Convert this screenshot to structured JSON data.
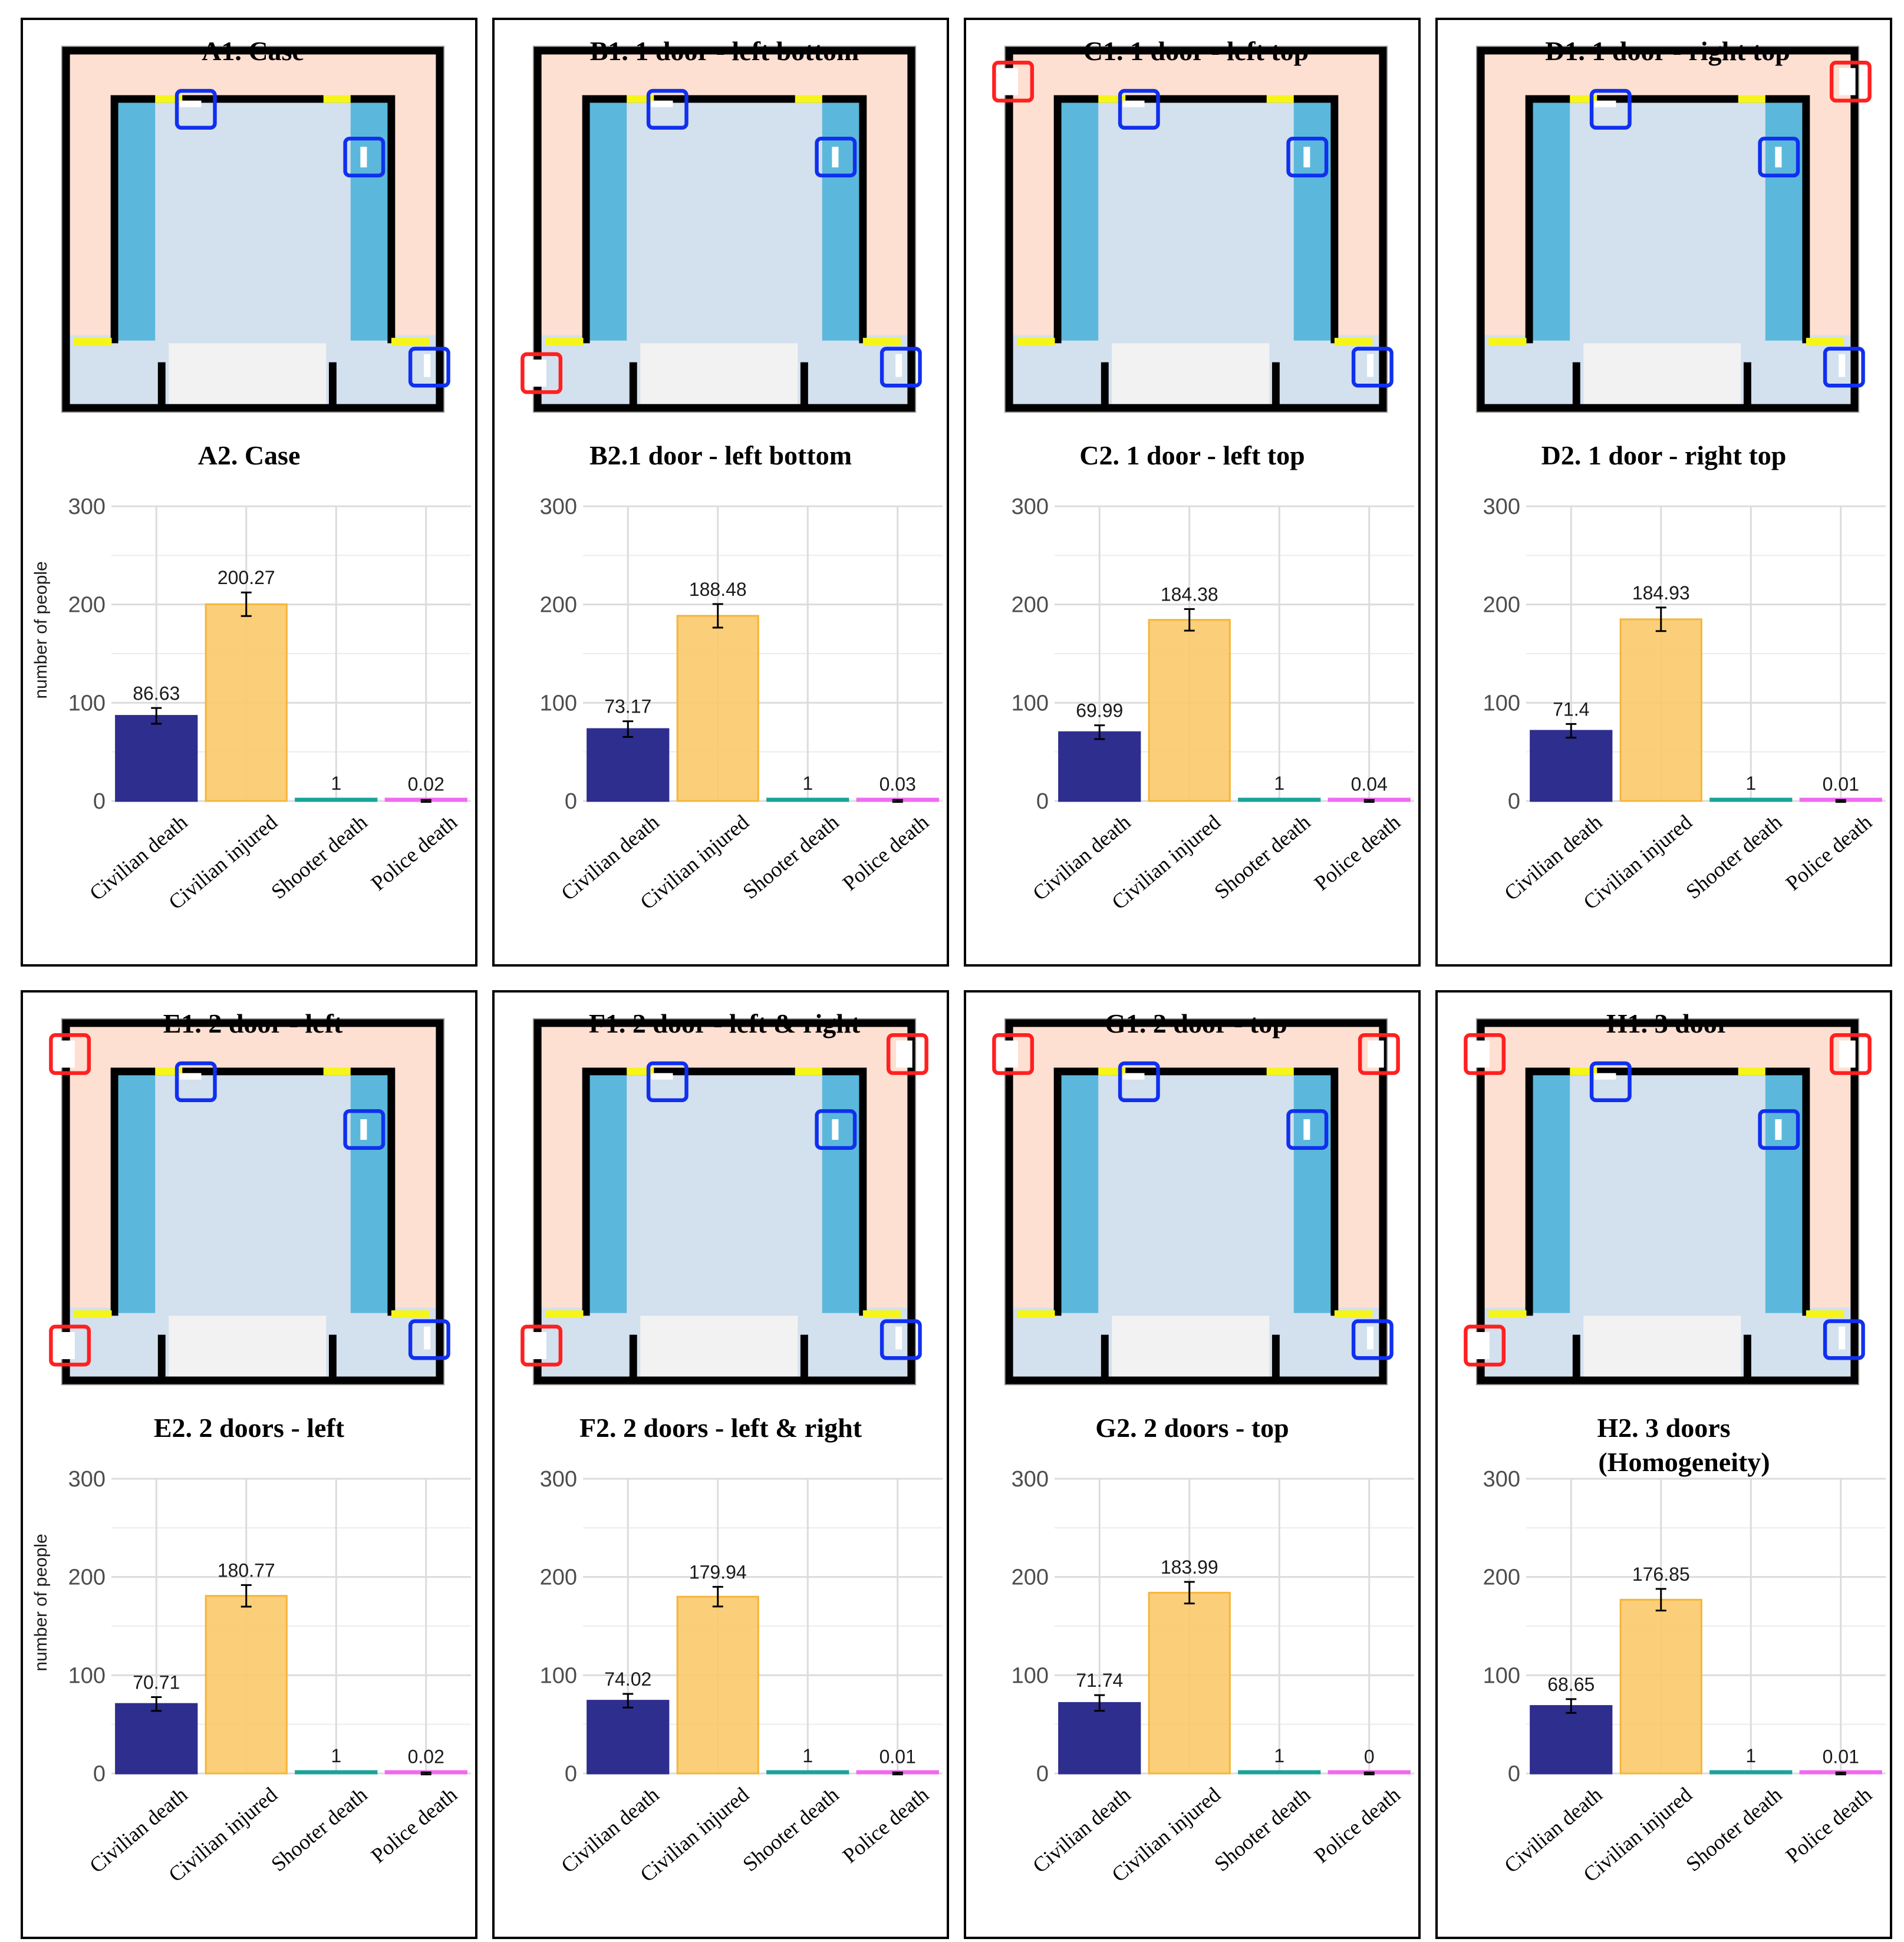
{
  "colors": {
    "civilian_death": "#2e2e8f",
    "civilian_injured": "#fbc96a",
    "shooter_death": "#1aa39a",
    "police_death": "#f06af0",
    "outer_area": "#fde0d2",
    "inner_room": "#d3e0ee",
    "blue_strip": "#5bb8dc",
    "wall": "#000000",
    "yellow_mark": "#f5f51a",
    "red_box": "#ff2020",
    "blue_box": "#1030ee"
  },
  "y_axis": {
    "label": "number of people",
    "ticks": [
      "0",
      "100",
      "200",
      "300"
    ]
  },
  "categories": [
    "Civilian death",
    "Civilian injured",
    "Shooter death",
    "Police death"
  ],
  "panels": [
    {
      "floorplan_title": "A1. Case",
      "doors": [],
      "show_ylabel": true,
      "chart_title": "A2. Case",
      "chart_data": {
        "type": "bar",
        "title": "A2. Case",
        "ylabel": "number of people",
        "ylim": [
          0,
          300
        ],
        "categories": [
          "Civilian death",
          "Civilian injured",
          "Shooter death",
          "Police death"
        ],
        "values": [
          86.63,
          200.27,
          1,
          0.02
        ],
        "labels": [
          "86.63",
          "200.27",
          "1",
          "0.02"
        ],
        "errors": [
          8,
          12,
          0,
          1
        ]
      }
    },
    {
      "floorplan_title": "B1. 1 door - left bottom",
      "doors": [
        "left-bottom"
      ],
      "show_ylabel": false,
      "chart_title": "B2.1 door - left bottom",
      "chart_data": {
        "type": "bar",
        "title": "B2.1 door - left bottom",
        "ylabel": "number of people",
        "ylim": [
          0,
          300
        ],
        "categories": [
          "Civilian death",
          "Civilian injured",
          "Shooter death",
          "Police death"
        ],
        "values": [
          73.17,
          188.48,
          1,
          0.03
        ],
        "labels": [
          "73.17",
          "188.48",
          "1",
          "0.03"
        ],
        "errors": [
          8,
          12,
          0,
          1
        ]
      }
    },
    {
      "floorplan_title": "C1. 1 door - left top",
      "doors": [
        "left-top"
      ],
      "show_ylabel": false,
      "chart_title": "C2. 1 door - left top",
      "chart_data": {
        "type": "bar",
        "title": "C2. 1 door - left top",
        "ylabel": "number of people",
        "ylim": [
          0,
          300
        ],
        "categories": [
          "Civilian death",
          "Civilian injured",
          "Shooter death",
          "Police death"
        ],
        "values": [
          69.99,
          184.38,
          1,
          0.04
        ],
        "labels": [
          "69.99",
          "184.38",
          "1",
          "0.04"
        ],
        "errors": [
          7,
          11,
          0,
          1
        ]
      }
    },
    {
      "floorplan_title": "D1. 1 door - right top",
      "doors": [
        "right-top"
      ],
      "show_ylabel": false,
      "chart_title": "D2. 1 door - right top",
      "chart_data": {
        "type": "bar",
        "title": "D2. 1 door - right top",
        "ylabel": "number of people",
        "ylim": [
          0,
          300
        ],
        "categories": [
          "Civilian death",
          "Civilian injured",
          "Shooter death",
          "Police death"
        ],
        "values": [
          71.4,
          184.93,
          1,
          0.01
        ],
        "labels": [
          "71.4",
          "184.93",
          "1",
          "0.01"
        ],
        "errors": [
          7,
          12,
          0,
          1
        ]
      }
    },
    {
      "floorplan_title": "E1. 2 door - left",
      "doors": [
        "left-top",
        "left-bottom"
      ],
      "show_ylabel": true,
      "chart_title": "E2. 2 doors - left",
      "chart_data": {
        "type": "bar",
        "title": "E2. 2 doors - left",
        "ylabel": "number of people",
        "ylim": [
          0,
          300
        ],
        "categories": [
          "Civilian death",
          "Civilian injured",
          "Shooter death",
          "Police death"
        ],
        "values": [
          70.71,
          180.77,
          1,
          0.02
        ],
        "labels": [
          "70.71",
          "180.77",
          "1",
          "0.02"
        ],
        "errors": [
          7,
          11,
          0,
          1
        ]
      }
    },
    {
      "floorplan_title": "F1.  2 door - left & right",
      "doors": [
        "right-top",
        "left-bottom"
      ],
      "show_ylabel": false,
      "chart_title": "F2. 2 doors - left & right",
      "chart_data": {
        "type": "bar",
        "title": "F2. 2 doors - left & right",
        "ylabel": "number of people",
        "ylim": [
          0,
          300
        ],
        "categories": [
          "Civilian death",
          "Civilian injured",
          "Shooter death",
          "Police death"
        ],
        "values": [
          74.02,
          179.94,
          1,
          0.01
        ],
        "labels": [
          "74.02",
          "179.94",
          "1",
          "0.01"
        ],
        "errors": [
          7,
          10,
          0,
          1
        ]
      }
    },
    {
      "floorplan_title": "G1. 2 door - top",
      "doors": [
        "left-top",
        "right-top"
      ],
      "show_ylabel": false,
      "chart_title": "G2. 2 doors - top",
      "chart_data": {
        "type": "bar",
        "title": "G2. 2 doors - top",
        "ylabel": "number of people",
        "ylim": [
          0,
          300
        ],
        "categories": [
          "Civilian death",
          "Civilian injured",
          "Shooter death",
          "Police death"
        ],
        "values": [
          71.74,
          183.99,
          1,
          0
        ],
        "labels": [
          "71.74",
          "183.99",
          "1",
          "0"
        ],
        "errors": [
          8,
          11,
          0,
          1
        ]
      }
    },
    {
      "floorplan_title": "H1. 3 door",
      "doors": [
        "left-top",
        "right-top",
        "left-bottom"
      ],
      "show_ylabel": false,
      "chart_title": "H2. 3 doors\n      (Homogeneity)",
      "chart_data": {
        "type": "bar",
        "title": "H2. 3 doors (Homogeneity)",
        "ylabel": "number of people",
        "ylim": [
          0,
          300
        ],
        "categories": [
          "Civilian death",
          "Civilian injured",
          "Shooter death",
          "Police death"
        ],
        "values": [
          68.65,
          176.85,
          1,
          0.01
        ],
        "labels": [
          "68.65",
          "176.85",
          "1",
          "0.01"
        ],
        "errors": [
          7,
          11,
          0,
          1
        ]
      }
    }
  ]
}
